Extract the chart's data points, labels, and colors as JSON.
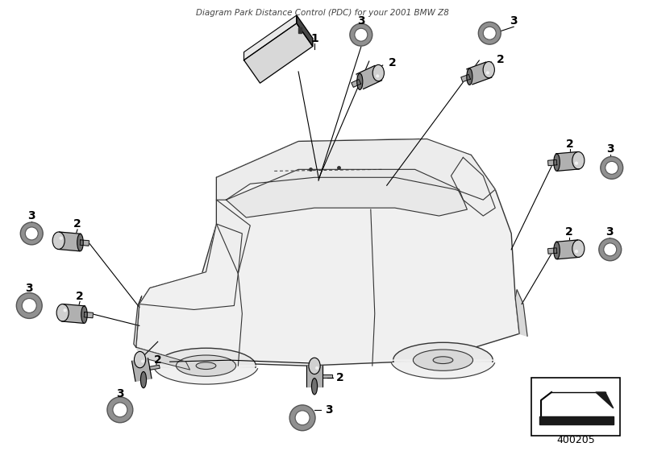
{
  "title": "Diagram Park Distance Control (PDC) for your 2001 BMW Z8",
  "bg_color": "#ffffff",
  "line_color": "#000000",
  "car_fill": "#f0f0f0",
  "car_stroke": "#333333",
  "sensor_light": "#d0d0d0",
  "sensor_mid": "#b0b0b0",
  "sensor_dark": "#707070",
  "ring_color": "#555555",
  "ring_fill": "#999999",
  "unit1_light": "#d8d8d8",
  "unit1_dark": "#484848",
  "fig_width": 8.0,
  "fig_height": 5.6,
  "part_number": "400205"
}
